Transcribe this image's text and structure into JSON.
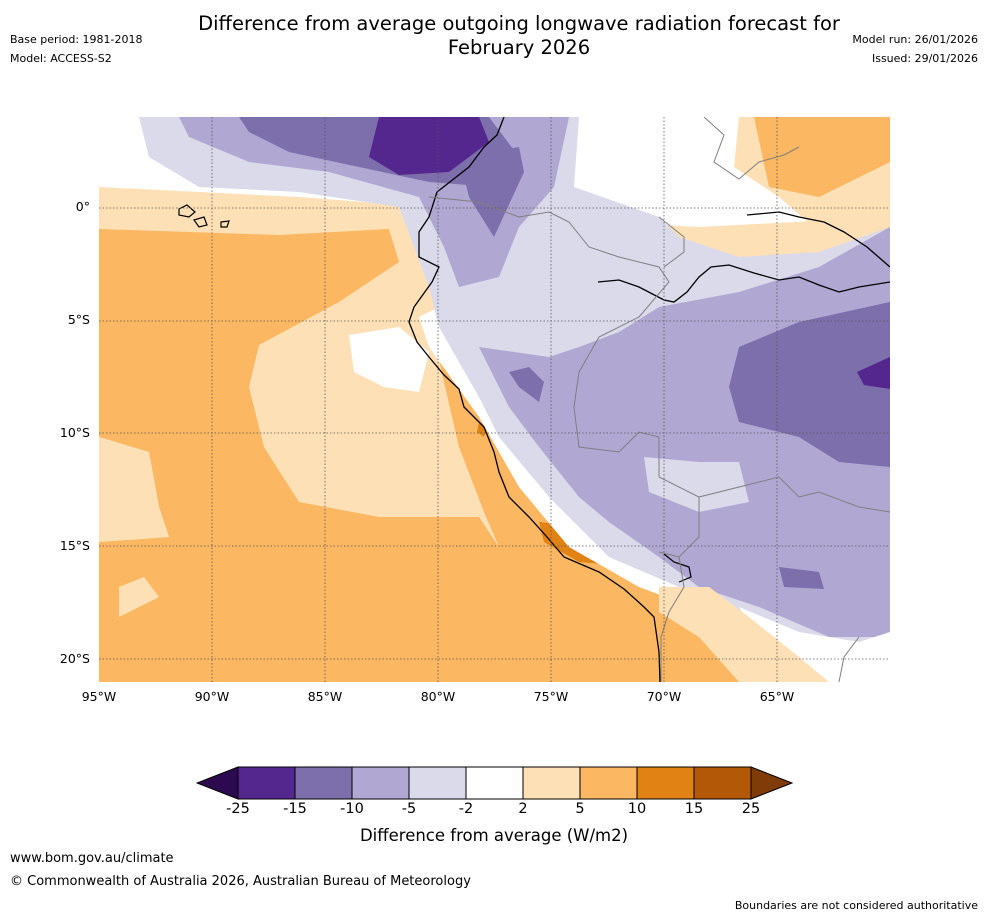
{
  "title_line1": "Difference from average outgoing longwave radiation forecast for",
  "title_line2": "February 2026",
  "base_period": "Base period: 1981-2018",
  "model": "Model: ACCESS-S2",
  "model_run": "Model run: 26/01/2026",
  "issued": "Issued: 29/01/2026",
  "lat_labels": [
    "0°",
    "5°S",
    "10°S",
    "15°S",
    "20°S"
  ],
  "lon_labels": [
    "95°W",
    "90°W",
    "85°W",
    "80°W",
    "75°W",
    "70°W",
    "65°W"
  ],
  "colorbar": {
    "ticks": [
      "-25",
      "-15",
      "-10",
      "-5",
      "-2",
      "2",
      "5",
      "10",
      "15",
      "25"
    ],
    "colors": [
      "#2d0a4f",
      "#54278f",
      "#7d6eac",
      "#b0a8d2",
      "#dadaeb",
      "#ffffff",
      "#fee0b6",
      "#fbb762",
      "#e08214",
      "#b35806",
      "#7f3b08"
    ],
    "label": "Difference from average (W/m2)"
  },
  "website": "www.bom.gov.au/climate",
  "copyright": "© Commonwealth of Australia 2026, Australian Bureau of Meteorology",
  "disclaimer": "Boundaries are not considered authoritative"
}
